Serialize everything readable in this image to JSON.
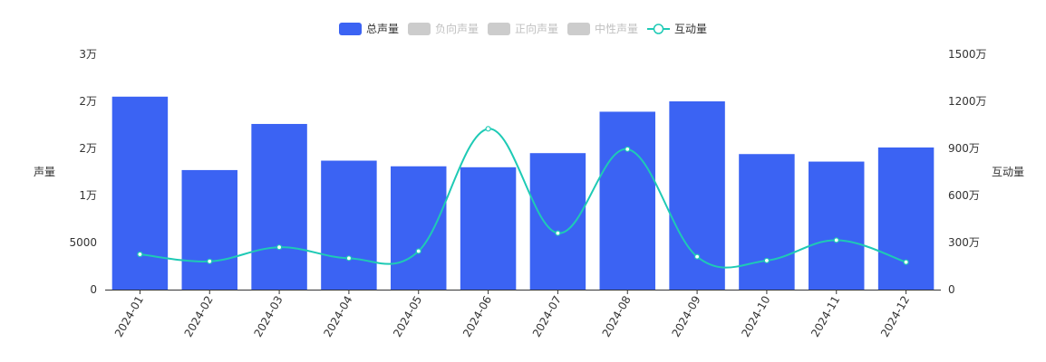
{
  "legend": [
    {
      "key": "total",
      "label": "总声量",
      "active": true,
      "color": "#3B63F3",
      "kind": "rect"
    },
    {
      "key": "negative",
      "label": "负向声量",
      "active": false,
      "color": "#CCCCCC",
      "kind": "rect"
    },
    {
      "key": "positive",
      "label": "正向声量",
      "active": false,
      "color": "#CCCCCC",
      "kind": "rect"
    },
    {
      "key": "neutral",
      "label": "中性声量",
      "active": false,
      "color": "#CCCCCC",
      "kind": "rect"
    },
    {
      "key": "interaction",
      "label": "互动量",
      "active": true,
      "color": "#1ECAB5",
      "kind": "line"
    }
  ],
  "chart_data": {
    "type": "bar",
    "categories": [
      "2024-01",
      "2024-02",
      "2024-03",
      "2024-04",
      "2024-05",
      "2024-06",
      "2024-07",
      "2024-08",
      "2024-09",
      "2024-10",
      "2024-11",
      "2024-12"
    ],
    "series": [
      {
        "name": "总声量",
        "type": "bar",
        "axis": "left",
        "color": "#3B63F3",
        "values": [
          20500,
          12700,
          17600,
          13700,
          13100,
          13000,
          14500,
          18900,
          20000,
          14400,
          13600,
          15100
        ]
      },
      {
        "name": "互动量",
        "type": "line",
        "axis": "right",
        "color": "#1ECAB5",
        "smooth": true,
        "values": [
          2250000,
          1800000,
          2700000,
          2000000,
          2450000,
          10250000,
          3600000,
          8950000,
          2100000,
          1850000,
          3150000,
          1750000
        ]
      }
    ],
    "y_left": {
      "label": "声量",
      "min": 0,
      "max": 25000,
      "ticks": [
        {
          "value": 0,
          "label": "0"
        },
        {
          "value": 5000,
          "label": "5000"
        },
        {
          "value": 10000,
          "label": "1万"
        },
        {
          "value": 15000,
          "label": "2万"
        },
        {
          "value": 20000,
          "label": "2万"
        },
        {
          "value": 25000,
          "label": "3万"
        }
      ]
    },
    "y_right": {
      "label": "互动量",
      "min": 0,
      "max": 15000000,
      "ticks": [
        {
          "value": 0,
          "label": "0"
        },
        {
          "value": 3000000,
          "label": "300万"
        },
        {
          "value": 6000000,
          "label": "600万"
        },
        {
          "value": 9000000,
          "label": "900万"
        },
        {
          "value": 12000000,
          "label": "1200万"
        },
        {
          "value": 15000000,
          "label": "1500万"
        }
      ]
    },
    "legend_position": "top-center",
    "grid": false
  }
}
